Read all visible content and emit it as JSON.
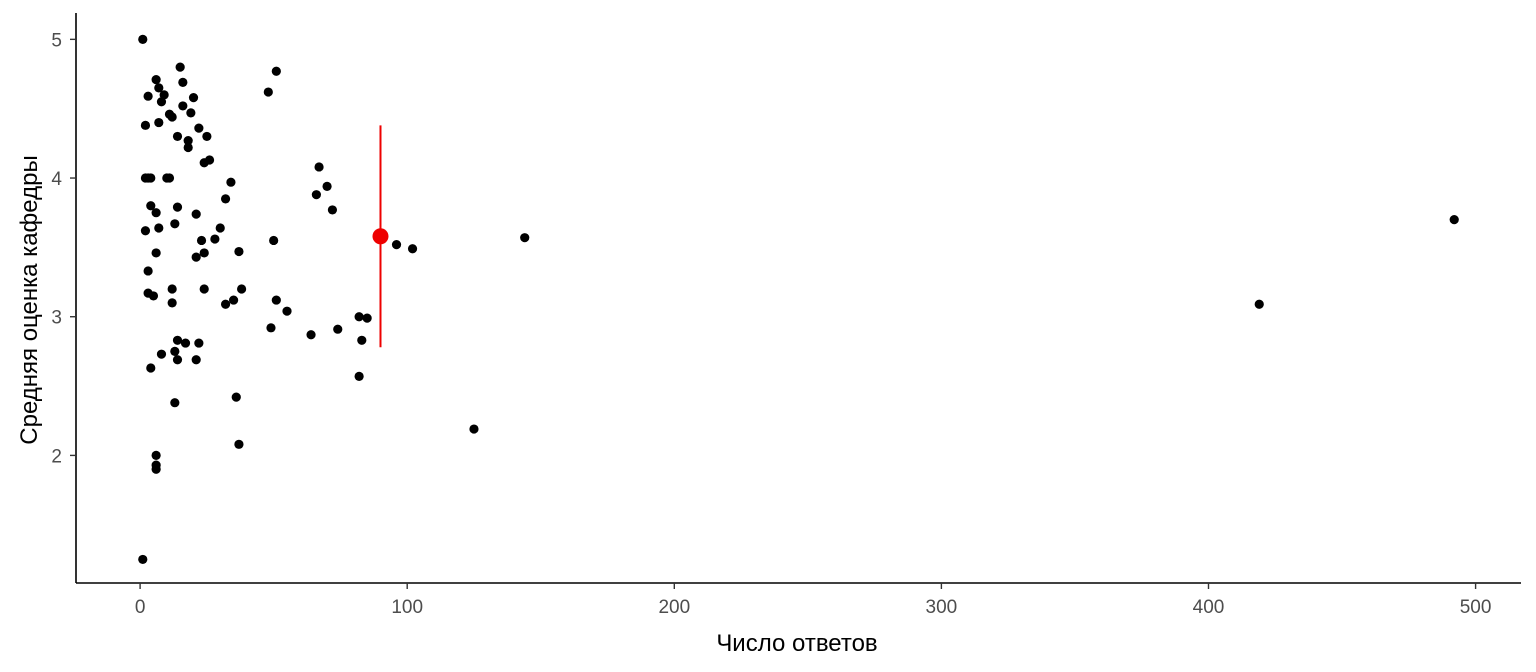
{
  "chart_data": {
    "type": "scatter",
    "title": "",
    "xlabel": "Число ответов",
    "ylabel": "Средняя оценка кафедры",
    "xlim": [
      -24,
      517
    ],
    "ylim": [
      1.08,
      5.19
    ],
    "xticks": [
      0,
      100,
      200,
      300,
      400,
      500
    ],
    "yticks": [
      2,
      3,
      4,
      5
    ],
    "grid": false,
    "legend": "none",
    "colors": {
      "points": "#000000",
      "highlight": "#ee0000",
      "axis": "#000000",
      "tick_label": "#4d4d4d"
    },
    "series": [
      {
        "values": [
          [
            1,
            5.0
          ],
          [
            1,
            1.25
          ],
          [
            2,
            4.38
          ],
          [
            2,
            4.0
          ],
          [
            2,
            3.62
          ],
          [
            3,
            4.0
          ],
          [
            3,
            4.59
          ],
          [
            3,
            3.33
          ],
          [
            3,
            3.17
          ],
          [
            4,
            4.0
          ],
          [
            4,
            3.8
          ],
          [
            4,
            2.63
          ],
          [
            5,
            3.15
          ],
          [
            6,
            4.71
          ],
          [
            6,
            3.75
          ],
          [
            6,
            3.46
          ],
          [
            6,
            2.0
          ],
          [
            6,
            1.93
          ],
          [
            6,
            1.9
          ],
          [
            7,
            4.65
          ],
          [
            7,
            4.4
          ],
          [
            7,
            3.64
          ],
          [
            8,
            4.55
          ],
          [
            8,
            2.73
          ],
          [
            9,
            4.6
          ],
          [
            10,
            4.0
          ],
          [
            11,
            4.0
          ],
          [
            11,
            4.46
          ],
          [
            12,
            3.2
          ],
          [
            12,
            3.1
          ],
          [
            12,
            4.44
          ],
          [
            13,
            3.67
          ],
          [
            13,
            2.75
          ],
          [
            13,
            2.38
          ],
          [
            14,
            4.3
          ],
          [
            14,
            3.79
          ],
          [
            14,
            2.83
          ],
          [
            14,
            2.69
          ],
          [
            15,
            4.8
          ],
          [
            16,
            4.69
          ],
          [
            16,
            4.52
          ],
          [
            17,
            2.81
          ],
          [
            18,
            4.27
          ],
          [
            18,
            4.22
          ],
          [
            19,
            4.47
          ],
          [
            20,
            4.58
          ],
          [
            21,
            3.74
          ],
          [
            21,
            3.43
          ],
          [
            21,
            2.69
          ],
          [
            22,
            4.36
          ],
          [
            22,
            2.81
          ],
          [
            23,
            3.55
          ],
          [
            24,
            3.46
          ],
          [
            24,
            3.2
          ],
          [
            24,
            4.11
          ],
          [
            25,
            4.3
          ],
          [
            26,
            4.13
          ],
          [
            28,
            3.56
          ],
          [
            30,
            3.64
          ],
          [
            32,
            3.85
          ],
          [
            32,
            3.09
          ],
          [
            34,
            3.97
          ],
          [
            35,
            3.12
          ],
          [
            36,
            2.42
          ],
          [
            37,
            3.47
          ],
          [
            37,
            2.08
          ],
          [
            38,
            3.2
          ],
          [
            48,
            4.62
          ],
          [
            49,
            2.92
          ],
          [
            50,
            3.55
          ],
          [
            51,
            4.77
          ],
          [
            51,
            3.12
          ],
          [
            55,
            3.04
          ],
          [
            64,
            2.87
          ],
          [
            66,
            3.88
          ],
          [
            67,
            4.08
          ],
          [
            70,
            3.94
          ],
          [
            72,
            3.77
          ],
          [
            74,
            2.91
          ],
          [
            82,
            3.0
          ],
          [
            82,
            2.57
          ],
          [
            83,
            2.83
          ],
          [
            85,
            2.99
          ],
          [
            96,
            3.52
          ],
          [
            102,
            3.49
          ],
          [
            125,
            2.19
          ],
          [
            144,
            3.57
          ],
          [
            419,
            3.09
          ],
          [
            492,
            3.7
          ]
        ]
      },
      {
        "marker": "mean-with-range",
        "values": [
          [
            90,
            3.58
          ]
        ],
        "range": [
          2.78,
          4.38
        ]
      }
    ]
  }
}
